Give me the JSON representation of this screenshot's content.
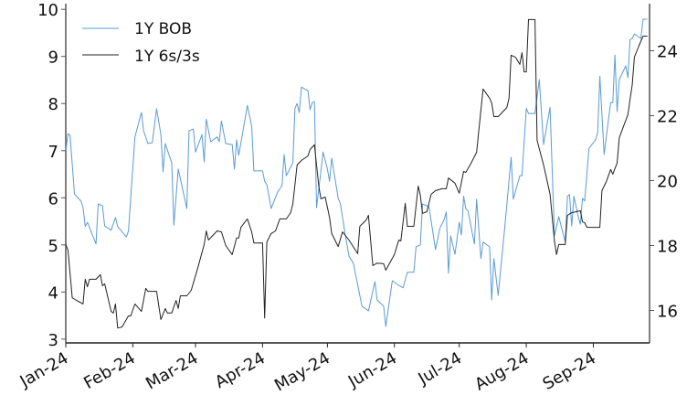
{
  "chart_data": {
    "type": "line",
    "title": "",
    "xlabel": "",
    "ylabel_left": "",
    "ylabel_right": "",
    "x_range": [
      "2024-01-01",
      "2024-09-27"
    ],
    "x_ticks": [
      {
        "date": "2024-01-01",
        "label": "Jan-24"
      },
      {
        "date": "2024-02-01",
        "label": "Feb-24"
      },
      {
        "date": "2024-03-01",
        "label": "Mar-24"
      },
      {
        "date": "2024-04-01",
        "label": "Apr-24"
      },
      {
        "date": "2024-05-01",
        "label": "May-24"
      },
      {
        "date": "2024-06-01",
        "label": "Jun-24"
      },
      {
        "date": "2024-07-01",
        "label": "Jul-24"
      },
      {
        "date": "2024-08-01",
        "label": "Aug-24"
      },
      {
        "date": "2024-09-01",
        "label": "Sep-24"
      }
    ],
    "y_left": {
      "range": [
        2.92,
        10.12
      ],
      "ticks": [
        "3",
        "4",
        "5",
        "6",
        "7",
        "8",
        "9",
        "10"
      ]
    },
    "y_right": {
      "range": [
        15.0,
        25.45
      ],
      "ticks": [
        "16",
        "18",
        "20",
        "22",
        "24"
      ]
    },
    "grid": false,
    "legend": {
      "placement": "top-left",
      "entries": [
        "1Y BOB",
        "1Y 6s/3s"
      ]
    },
    "series": [
      {
        "name": "1Y BOB",
        "axis": "left",
        "color": "#5b9bd5",
        "x": [
          "2024-01-01",
          "2024-01-02",
          "2024-01-03",
          "2024-01-05",
          "2024-01-08",
          "2024-01-09",
          "2024-01-10",
          "2024-01-11",
          "2024-01-15",
          "2024-01-16",
          "2024-01-18",
          "2024-01-19",
          "2024-01-22",
          "2024-01-24",
          "2024-01-25",
          "2024-01-29",
          "2024-01-30",
          "2024-02-02",
          "2024-02-05",
          "2024-02-06",
          "2024-02-08",
          "2024-02-10",
          "2024-02-12",
          "2024-02-14",
          "2024-02-15",
          "2024-02-16",
          "2024-02-19",
          "2024-02-20",
          "2024-02-22",
          "2024-02-26",
          "2024-02-27",
          "2024-02-29",
          "2024-03-01",
          "2024-03-04",
          "2024-03-05",
          "2024-03-06",
          "2024-03-08",
          "2024-03-11",
          "2024-03-12",
          "2024-03-13",
          "2024-03-15",
          "2024-03-18",
          "2024-03-19",
          "2024-03-20",
          "2024-03-21",
          "2024-03-25",
          "2024-03-27",
          "2024-03-28",
          "2024-04-01",
          "2024-04-02",
          "2024-04-03",
          "2024-04-05",
          "2024-04-08",
          "2024-04-10",
          "2024-04-11",
          "2024-04-12",
          "2024-04-15",
          "2024-04-16",
          "2024-04-17",
          "2024-04-18",
          "2024-04-19",
          "2024-04-22",
          "2024-04-23",
          "2024-04-24",
          "2024-04-25",
          "2024-04-26",
          "2024-04-28",
          "2024-04-29",
          "2024-05-01",
          "2024-05-02",
          "2024-05-03",
          "2024-05-06",
          "2024-05-07",
          "2024-05-09",
          "2024-05-11",
          "2024-05-13",
          "2024-05-17",
          "2024-05-20",
          "2024-05-23",
          "2024-05-24",
          "2024-05-27",
          "2024-05-28",
          "2024-05-31",
          "2024-06-03",
          "2024-06-05",
          "2024-06-07",
          "2024-06-10",
          "2024-06-11",
          "2024-06-13",
          "2024-06-14",
          "2024-06-17",
          "2024-06-20",
          "2024-06-22",
          "2024-06-24",
          "2024-06-25",
          "2024-06-26",
          "2024-06-27",
          "2024-06-29",
          "2024-07-01",
          "2024-07-02",
          "2024-07-03",
          "2024-07-04",
          "2024-07-05",
          "2024-07-08",
          "2024-07-09",
          "2024-07-11",
          "2024-07-12",
          "2024-07-15",
          "2024-07-16",
          "2024-07-17",
          "2024-07-19",
          "2024-07-22",
          "2024-07-25",
          "2024-07-26",
          "2024-07-29",
          "2024-07-30",
          "2024-08-01",
          "2024-08-02",
          "2024-08-05",
          "2024-08-07",
          "2024-08-09",
          "2024-08-12",
          "2024-08-14",
          "2024-08-16",
          "2024-08-19",
          "2024-08-20",
          "2024-08-21",
          "2024-08-22",
          "2024-08-23",
          "2024-08-25",
          "2024-08-26",
          "2024-08-27",
          "2024-08-28",
          "2024-08-30",
          "2024-09-02",
          "2024-09-03",
          "2024-09-04",
          "2024-09-06",
          "2024-09-09",
          "2024-09-10",
          "2024-09-11",
          "2024-09-12",
          "2024-09-13",
          "2024-09-16",
          "2024-09-17",
          "2024-09-18",
          "2024-09-19",
          "2024-09-20",
          "2024-09-23",
          "2024-09-24",
          "2024-09-26"
        ],
        "y": [
          7.0,
          7.36,
          7.33,
          6.08,
          5.93,
          5.8,
          5.39,
          5.48,
          5.02,
          5.87,
          5.83,
          5.4,
          5.31,
          5.58,
          5.39,
          5.17,
          5.29,
          7.29,
          7.81,
          7.42,
          7.15,
          7.17,
          7.89,
          7.34,
          6.55,
          7.15,
          6.74,
          5.42,
          6.61,
          5.77,
          7.42,
          7.46,
          6.97,
          7.34,
          6.76,
          7.67,
          7.19,
          7.29,
          7.19,
          7.63,
          7.15,
          7.13,
          6.61,
          7.23,
          6.9,
          7.96,
          7.52,
          6.57,
          6.57,
          6.35,
          6.28,
          5.77,
          6.12,
          6.26,
          6.92,
          6.47,
          6.74,
          7.9,
          8.0,
          7.81,
          8.35,
          8.27,
          7.87,
          8.02,
          8.04,
          5.79,
          6.57,
          6.97,
          6.61,
          6.35,
          6.84,
          5.99,
          5.87,
          5.29,
          4.76,
          4.61,
          3.7,
          3.6,
          4.22,
          3.83,
          3.7,
          3.27,
          4.24,
          4.14,
          4.09,
          4.42,
          4.42,
          4.96,
          5.0,
          5.87,
          5.81,
          4.9,
          5.35,
          5.54,
          5.7,
          4.4,
          5.19,
          4.8,
          5.48,
          5.21,
          6.03,
          5.77,
          5.73,
          5.02,
          5.97,
          4.71,
          5.06,
          4.96,
          3.83,
          4.71,
          3.93,
          5.35,
          6.86,
          5.97,
          6.47,
          6.47,
          7.9,
          7.79,
          7.79,
          8.51,
          7.13,
          7.92,
          5.19,
          5.6,
          5.06,
          6.03,
          6.07,
          5.4,
          6.03,
          5.6,
          5.44,
          5.99,
          5.93,
          7.05,
          7.23,
          7.38,
          8.58,
          6.92,
          8.02,
          8.02,
          9.03,
          7.83,
          8.51,
          8.8,
          8.55,
          9.36,
          9.38,
          9.48,
          9.38,
          9.79,
          9.79
        ]
      },
      {
        "name": "1Y 6s/3s",
        "axis": "right",
        "color": "#222222",
        "x": [
          "2024-01-01",
          "2024-01-02",
          "2024-01-04",
          "2024-01-06",
          "2024-01-09",
          "2024-01-10",
          "2024-01-11",
          "2024-01-12",
          "2024-01-15",
          "2024-01-17",
          "2024-01-18",
          "2024-01-19",
          "2024-01-22",
          "2024-01-23",
          "2024-01-24",
          "2024-01-25",
          "2024-01-27",
          "2024-01-30",
          "2024-01-31",
          "2024-02-02",
          "2024-02-05",
          "2024-02-07",
          "2024-02-08",
          "2024-02-12",
          "2024-02-14",
          "2024-02-16",
          "2024-02-17",
          "2024-02-19",
          "2024-02-21",
          "2024-02-22",
          "2024-02-23",
          "2024-02-26",
          "2024-02-28",
          "2024-03-02",
          "2024-03-05",
          "2024-03-06",
          "2024-03-07",
          "2024-03-11",
          "2024-03-13",
          "2024-03-15",
          "2024-03-18",
          "2024-03-20",
          "2024-03-21",
          "2024-03-22",
          "2024-03-25",
          "2024-03-27",
          "2024-03-28",
          "2024-04-01",
          "2024-04-02",
          "2024-04-03",
          "2024-04-05",
          "2024-04-07",
          "2024-04-09",
          "2024-04-12",
          "2024-04-14",
          "2024-04-15",
          "2024-04-17",
          "2024-04-19",
          "2024-04-22",
          "2024-04-23",
          "2024-04-25",
          "2024-04-27",
          "2024-04-28",
          "2024-04-30",
          "2024-05-02",
          "2024-05-03",
          "2024-05-06",
          "2024-05-08",
          "2024-05-11",
          "2024-05-15",
          "2024-05-16",
          "2024-05-19",
          "2024-05-20",
          "2024-05-22",
          "2024-05-24",
          "2024-05-27",
          "2024-05-28",
          "2024-06-01",
          "2024-06-03",
          "2024-06-04",
          "2024-06-06",
          "2024-06-07",
          "2024-06-10",
          "2024-06-12",
          "2024-06-13",
          "2024-06-14",
          "2024-06-16",
          "2024-06-18",
          "2024-06-20",
          "2024-06-23",
          "2024-06-25",
          "2024-06-26",
          "2024-06-29",
          "2024-07-01",
          "2024-07-03",
          "2024-07-04",
          "2024-07-06",
          "2024-07-09",
          "2024-07-11",
          "2024-07-12",
          "2024-07-15",
          "2024-07-16",
          "2024-07-17",
          "2024-07-19",
          "2024-07-23",
          "2024-07-24",
          "2024-07-25",
          "2024-07-27",
          "2024-07-29",
          "2024-07-30",
          "2024-07-31",
          "2024-08-01",
          "2024-08-02",
          "2024-08-05",
          "2024-08-06",
          "2024-08-09",
          "2024-08-12",
          "2024-08-14",
          "2024-08-15",
          "2024-08-16",
          "2024-08-19",
          "2024-08-20",
          "2024-08-22",
          "2024-08-26",
          "2024-08-27",
          "2024-08-28",
          "2024-08-29",
          "2024-09-04",
          "2024-09-05",
          "2024-09-07",
          "2024-09-09",
          "2024-09-10",
          "2024-09-12",
          "2024-09-13",
          "2024-09-17",
          "2024-09-18",
          "2024-09-19",
          "2024-09-20",
          "2024-09-22",
          "2024-09-24",
          "2024-09-26"
        ],
        "y": [
          18.03,
          17.86,
          16.39,
          16.31,
          16.2,
          16.96,
          16.73,
          16.96,
          16.96,
          17.1,
          16.76,
          16.82,
          15.97,
          15.92,
          16.2,
          15.46,
          15.49,
          15.83,
          15.83,
          16.2,
          15.97,
          16.68,
          16.59,
          16.59,
          15.72,
          16.06,
          15.92,
          15.92,
          16.31,
          16.06,
          16.45,
          16.45,
          16.62,
          17.3,
          18.03,
          18.45,
          18.17,
          18.45,
          18.42,
          18.0,
          17.72,
          18.23,
          18.23,
          18.56,
          18.82,
          18.42,
          18.08,
          18.08,
          15.77,
          18.11,
          18.37,
          18.45,
          18.82,
          18.82,
          19.01,
          19.27,
          20.48,
          20.62,
          20.76,
          20.96,
          21.1,
          19.83,
          19.44,
          19.49,
          18.87,
          18.37,
          17.97,
          18.42,
          18.17,
          17.75,
          18.59,
          18.79,
          18.93,
          17.38,
          17.46,
          17.44,
          17.24,
          17.72,
          18.17,
          18.14,
          19.3,
          18.59,
          18.59,
          19.83,
          19.55,
          18.99,
          19.04,
          19.58,
          19.69,
          19.75,
          19.75,
          20.08,
          19.92,
          19.61,
          20.28,
          20.25,
          20.48,
          20.87,
          22.17,
          22.82,
          22.54,
          22.39,
          21.97,
          21.97,
          22.25,
          22.54,
          23.86,
          23.8,
          23.58,
          23.94,
          23.35,
          23.35,
          24.96,
          24.96,
          21.24,
          20.48,
          19.58,
          18.14,
          17.72,
          18.03,
          18.03,
          18.93,
          19.01,
          19.07,
          18.73,
          18.7,
          18.56,
          18.56,
          19.69,
          19.97,
          20.34,
          20.2,
          20.54,
          21.32,
          22.03,
          22.51,
          22.96,
          23.8,
          24.14,
          24.45,
          24.45
        ]
      }
    ]
  }
}
